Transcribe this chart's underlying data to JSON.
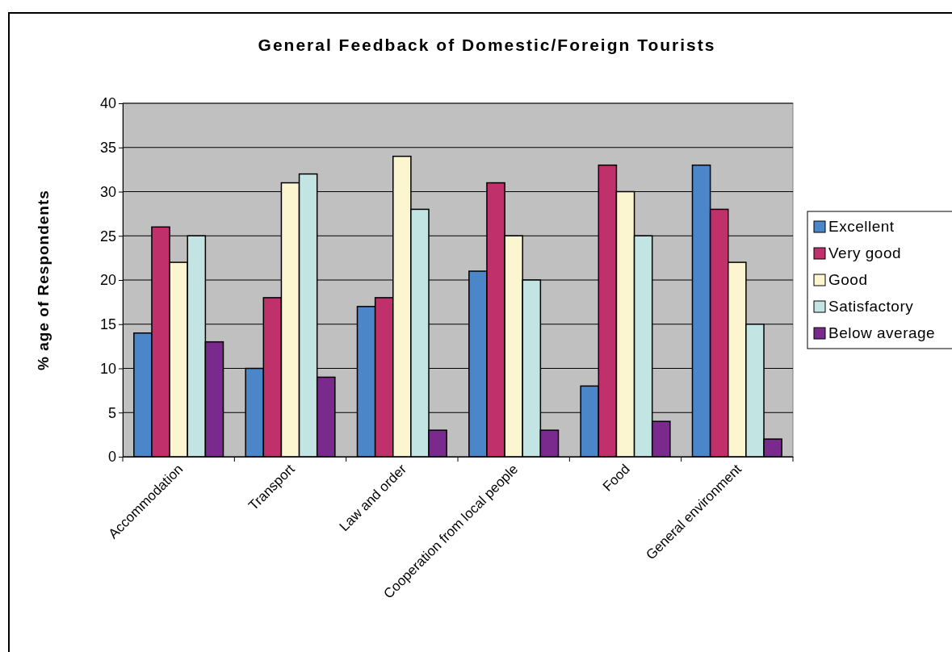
{
  "chart_data": {
    "type": "bar",
    "title": "General Feedback of Domestic/Foreign Tourists",
    "ylabel": "% age of Respondents",
    "categories": [
      "Accommodation",
      "Transport",
      "Law and order",
      "Cooperation from local people",
      "Food",
      "General environment"
    ],
    "series": [
      {
        "name": "Excellent",
        "color": "#4a86c8",
        "values": [
          14,
          10,
          17,
          21,
          8,
          33
        ]
      },
      {
        "name": "Very good",
        "color": "#c0306a",
        "values": [
          26,
          18,
          18,
          31,
          33,
          28
        ]
      },
      {
        "name": "Good",
        "color": "#fbf5d0",
        "values": [
          22,
          31,
          34,
          25,
          30,
          22
        ]
      },
      {
        "name": "Satisfactory",
        "color": "#c2e4e2",
        "values": [
          25,
          32,
          28,
          20,
          25,
          15
        ]
      },
      {
        "name": "Below average",
        "color": "#7a2a8c",
        "values": [
          13,
          9,
          3,
          3,
          4,
          2
        ]
      }
    ],
    "ylim": [
      0,
      40
    ],
    "yticks": [
      0,
      5,
      10,
      15,
      20,
      25,
      30,
      35,
      40
    ],
    "grid": "y",
    "legend": "right"
  }
}
